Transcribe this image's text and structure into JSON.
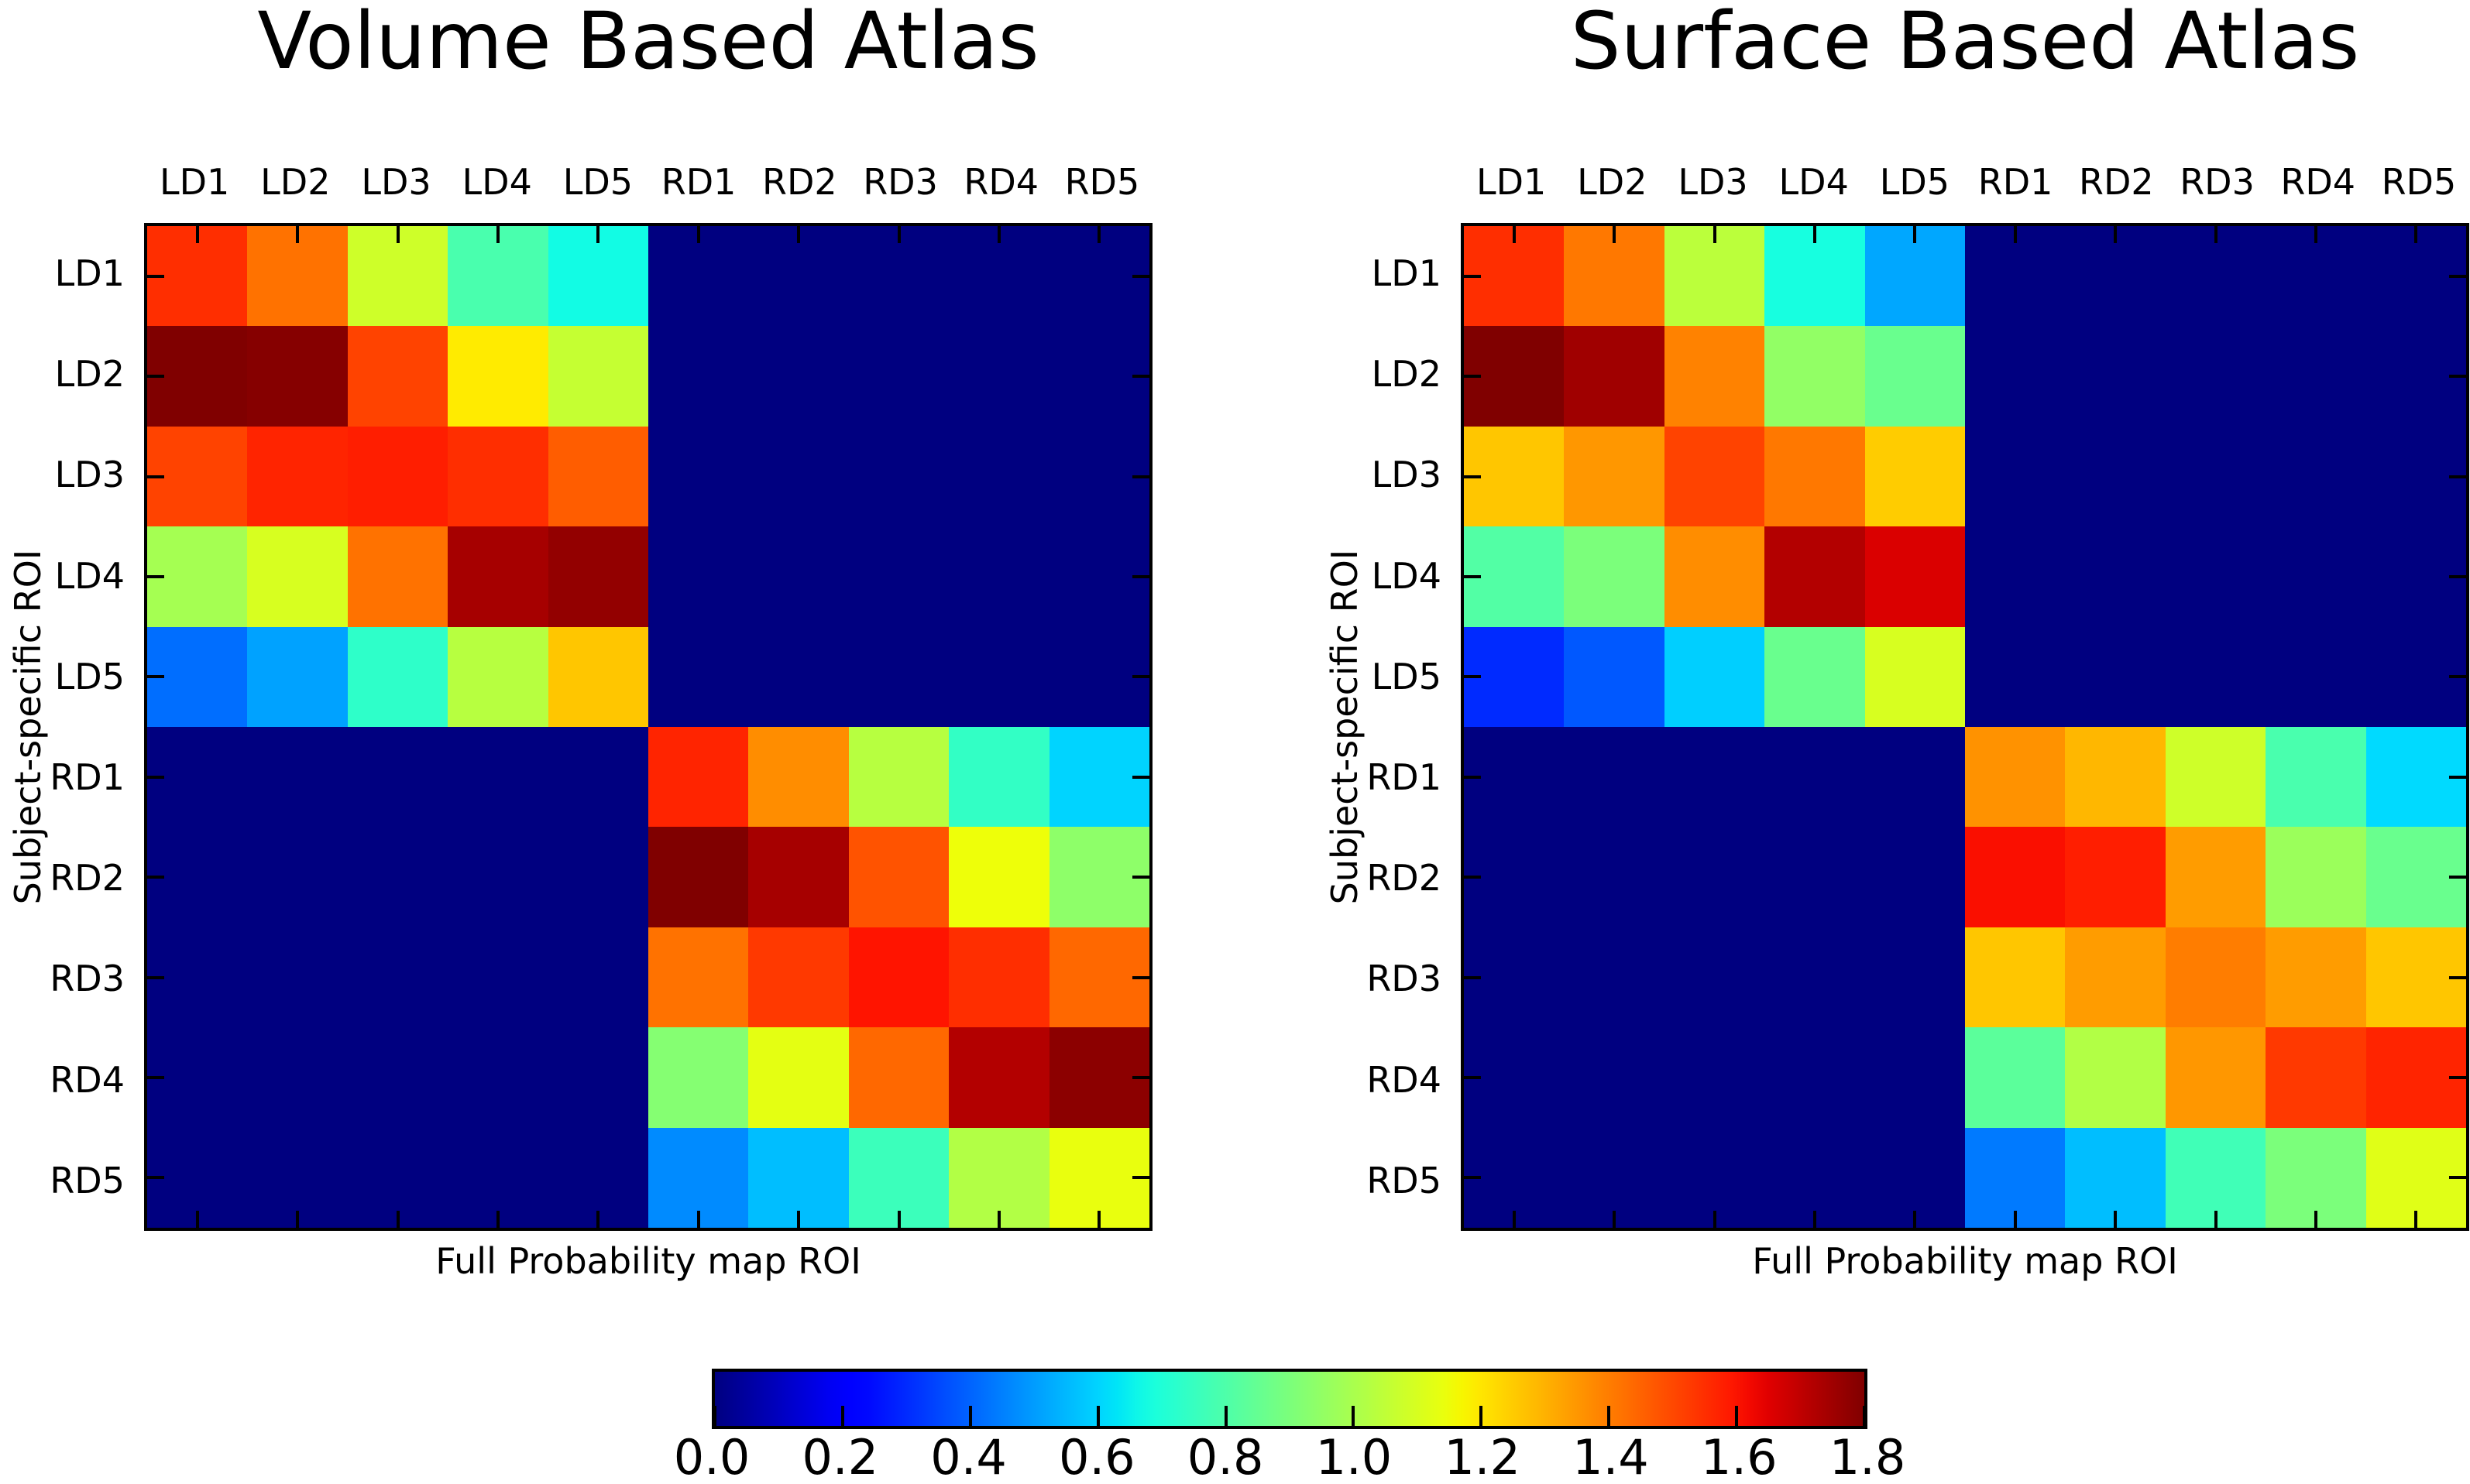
{
  "page": {
    "background": "#ffffff",
    "text_color": "#000000"
  },
  "colorbar": {
    "colormap": "jet",
    "vmin": 0.0,
    "vmax": 1.8,
    "tick_labels": [
      "0.0",
      "0.2",
      "0.4",
      "0.6",
      "0.8",
      "1.0",
      "1.2",
      "1.4",
      "1.6",
      "1.8"
    ]
  },
  "chart_data": [
    {
      "type": "heatmap",
      "title": "Volume Based Atlas",
      "xlabel": "Full Probability map ROI",
      "ylabel": "Subject-specific ROI",
      "colormap": "jet",
      "vmin": 0.0,
      "vmax": 1.8,
      "columns": [
        "LD1",
        "LD2",
        "LD3",
        "LD4",
        "LD5",
        "RD1",
        "RD2",
        "RD3",
        "RD4",
        "RD5"
      ],
      "rows": [
        "LD1",
        "LD2",
        "LD3",
        "LD4",
        "LD5",
        "RD1",
        "RD2",
        "RD3",
        "RD4",
        "RD5"
      ],
      "values": [
        [
          1.55,
          1.42,
          1.08,
          0.79,
          0.67,
          0.0,
          0.0,
          0.0,
          0.0,
          0.0
        ],
        [
          1.8,
          1.79,
          1.51,
          1.19,
          1.06,
          0.0,
          0.0,
          0.0,
          0.0,
          0.0
        ],
        [
          1.51,
          1.57,
          1.58,
          1.55,
          1.46,
          0.0,
          0.0,
          0.0,
          0.0,
          0.0
        ],
        [
          0.99,
          1.1,
          1.42,
          1.74,
          1.77,
          0.0,
          0.0,
          0.0,
          0.0,
          0.0
        ],
        [
          0.42,
          0.51,
          0.73,
          1.03,
          1.26,
          0.0,
          0.0,
          0.0,
          0.0,
          0.0
        ],
        [
          0.0,
          0.0,
          0.0,
          0.0,
          0.0,
          1.57,
          1.37,
          1.03,
          0.74,
          0.6
        ],
        [
          0.0,
          0.0,
          0.0,
          0.0,
          0.0,
          1.8,
          1.74,
          1.48,
          1.15,
          0.94
        ],
        [
          0.0,
          0.0,
          0.0,
          0.0,
          0.0,
          1.42,
          1.53,
          1.6,
          1.55,
          1.44
        ],
        [
          0.0,
          0.0,
          0.0,
          0.0,
          0.0,
          0.92,
          1.13,
          1.44,
          1.72,
          1.78
        ],
        [
          0.0,
          0.0,
          0.0,
          0.0,
          0.0,
          0.47,
          0.56,
          0.76,
          1.02,
          1.14
        ]
      ]
    },
    {
      "type": "heatmap",
      "title": "Surface Based Atlas",
      "xlabel": "Full Probability map ROI",
      "ylabel": "Subject-specific ROI",
      "colormap": "jet",
      "vmin": 0.0,
      "vmax": 1.8,
      "columns": [
        "LD1",
        "LD2",
        "LD3",
        "LD4",
        "LD5",
        "RD1",
        "RD2",
        "RD3",
        "RD4",
        "RD5"
      ],
      "rows": [
        "LD1",
        "LD2",
        "LD3",
        "LD4",
        "LD5",
        "RD1",
        "RD2",
        "RD3",
        "RD4",
        "RD5"
      ],
      "values": [
        [
          1.55,
          1.41,
          1.04,
          0.68,
          0.52,
          0.0,
          0.0,
          0.0,
          0.0,
          0.0
        ],
        [
          1.8,
          1.75,
          1.39,
          0.95,
          0.86,
          0.0,
          0.0,
          0.0,
          0.0,
          0.0
        ],
        [
          1.26,
          1.35,
          1.51,
          1.41,
          1.25,
          0.0,
          0.0,
          0.0,
          0.0,
          0.0
        ],
        [
          0.81,
          0.9,
          1.37,
          1.72,
          1.66,
          0.0,
          0.0,
          0.0,
          0.0,
          0.0
        ],
        [
          0.3,
          0.38,
          0.59,
          0.86,
          1.1,
          0.0,
          0.0,
          0.0,
          0.0,
          0.0
        ],
        [
          0.0,
          0.0,
          0.0,
          0.0,
          0.0,
          1.36,
          1.29,
          1.08,
          0.79,
          0.61
        ],
        [
          0.0,
          0.0,
          0.0,
          0.0,
          0.0,
          1.61,
          1.58,
          1.34,
          0.97,
          0.86
        ],
        [
          0.0,
          0.0,
          0.0,
          0.0,
          0.0,
          1.26,
          1.34,
          1.4,
          1.34,
          1.26
        ],
        [
          0.0,
          0.0,
          0.0,
          0.0,
          0.0,
          0.83,
          1.02,
          1.35,
          1.53,
          1.57
        ],
        [
          0.0,
          0.0,
          0.0,
          0.0,
          0.0,
          0.44,
          0.56,
          0.77,
          0.9,
          1.12
        ]
      ]
    }
  ]
}
